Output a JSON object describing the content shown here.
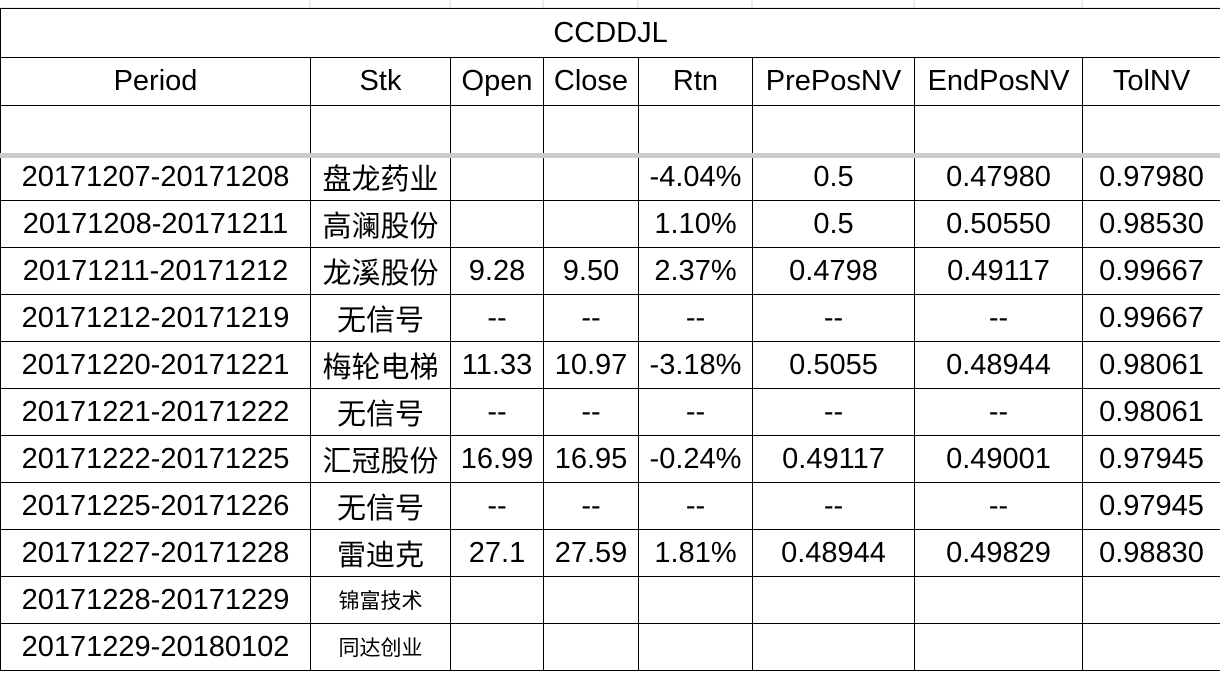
{
  "sheet": {
    "title": "CCDDJL",
    "headers": [
      "Period",
      "Stk",
      "Open",
      "Close",
      "Rtn",
      "PrePosNV",
      "EndPosNV",
      "TolNV"
    ],
    "rows": [
      {
        "period": "20171207-20171208",
        "stk": "盘龙药业",
        "open": "",
        "close": "",
        "rtn": "-4.04%",
        "pre": "0.5",
        "end": "0.47980",
        "tol": "0.97980",
        "tone": "neg"
      },
      {
        "period": "20171208-20171211",
        "stk": "高澜股份",
        "open": "",
        "close": "",
        "rtn": "1.10%",
        "pre": "0.5",
        "end": "0.50550",
        "tol": "0.98530",
        "tone": "pos"
      },
      {
        "period": "20171211-20171212",
        "stk": "龙溪股份",
        "open": "9.28",
        "close": "9.50",
        "rtn": "2.37%",
        "pre": "0.4798",
        "end": "0.49117",
        "tol": "0.99667",
        "tone": "pos"
      },
      {
        "period": "20171212-20171219",
        "stk": "无信号",
        "open": "--",
        "close": "--",
        "rtn": "--",
        "pre": "--",
        "end": "--",
        "tol": "0.99667",
        "tone": ""
      },
      {
        "period": "20171220-20171221",
        "stk": "梅轮电梯",
        "open": "11.33",
        "close": "10.97",
        "rtn": "-3.18%",
        "pre": "0.5055",
        "end": "0.48944",
        "tol": "0.98061",
        "tone": "neg"
      },
      {
        "period": "20171221-20171222",
        "stk": "无信号",
        "open": "--",
        "close": "--",
        "rtn": "--",
        "pre": "--",
        "end": "--",
        "tol": "0.98061",
        "tone": ""
      },
      {
        "period": "20171222-20171225",
        "stk": "汇冠股份",
        "open": "16.99",
        "close": "16.95",
        "rtn": "-0.24%",
        "pre": "0.49117",
        "end": "0.49001",
        "tol": "0.97945",
        "tone": "neg"
      },
      {
        "period": "20171225-20171226",
        "stk": "无信号",
        "open": "--",
        "close": "--",
        "rtn": "--",
        "pre": "--",
        "end": "--",
        "tol": "0.97945",
        "tone": ""
      },
      {
        "period": "20171227-20171228",
        "stk": "雷迪克",
        "open": "27.1",
        "close": "27.59",
        "rtn": "1.81%",
        "pre": "0.48944",
        "end": "0.49829",
        "tol": "0.98830",
        "tone": "pos"
      },
      {
        "period": "20171228-20171229",
        "stk": "锦富技术",
        "open": "",
        "close": "",
        "rtn": "",
        "pre": "",
        "end": "",
        "tol": "",
        "tone": "",
        "small": true
      },
      {
        "period": "20171229-20180102",
        "stk": "同达创业",
        "open": "",
        "close": "",
        "rtn": "",
        "pre": "",
        "end": "",
        "tol": "",
        "tone": "",
        "small": true
      }
    ]
  }
}
